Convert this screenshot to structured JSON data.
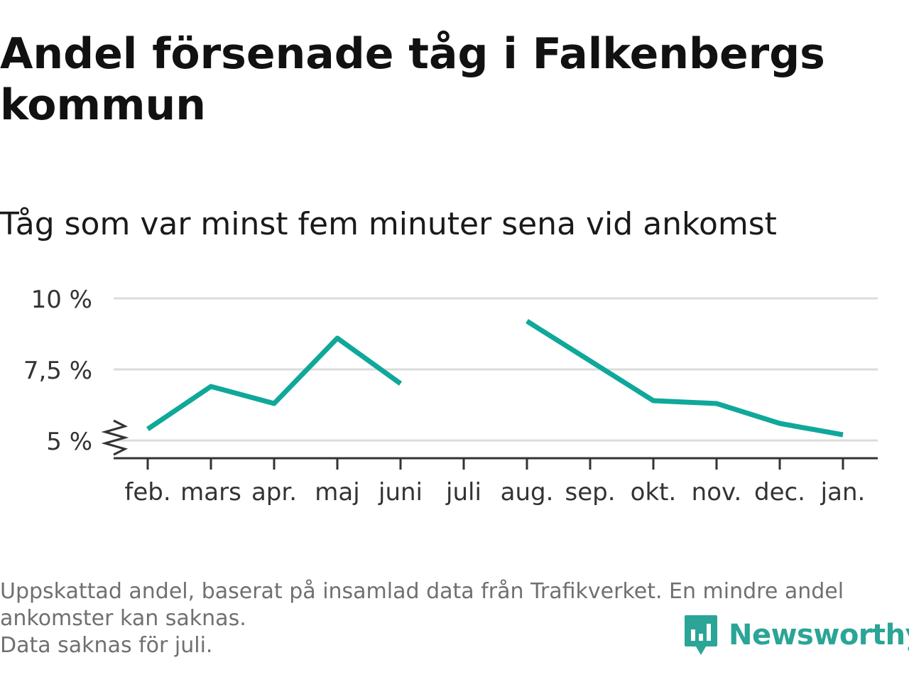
{
  "title": "Andel försenade tåg i Falkenbergs kommun",
  "subtitle": "Tåg som var minst fem minuter sena vid ankomst",
  "footnote": [
    "Uppskattad andel, baserat på insamlad data från Trafikverket. En mindre andel",
    "ankomster kan saknas.",
    "Data saknas för juli."
  ],
  "brand": {
    "name": "Newsworthy",
    "icon": "newsworthy-logo-icon",
    "color": "#2aa597"
  },
  "chart_data": {
    "type": "line",
    "categories": [
      "feb.",
      "mars",
      "apr.",
      "maj",
      "juni",
      "juli",
      "aug.",
      "sep.",
      "okt.",
      "nov.",
      "dec.",
      "jan."
    ],
    "series": [
      {
        "values": [
          5.4,
          6.9,
          6.3,
          8.6,
          7.0,
          null,
          9.2,
          7.8,
          6.4,
          6.3,
          5.6,
          5.2
        ],
        "color": "#0fa89a"
      }
    ],
    "y_ticks": [
      5,
      7.5,
      10
    ],
    "y_tick_labels": [
      "5 %",
      "7,5 %",
      "10 %"
    ],
    "ylim": [
      5,
      10
    ],
    "axis_break": true,
    "grid": true,
    "xlabel": "",
    "ylabel": ""
  }
}
